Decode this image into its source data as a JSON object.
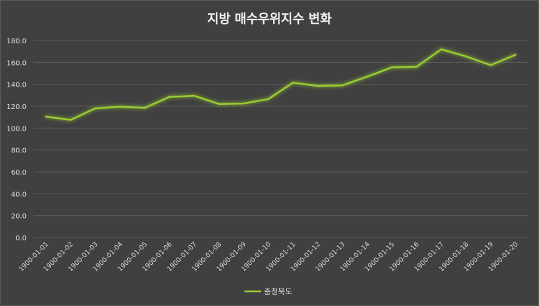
{
  "chart_data": {
    "type": "line",
    "title": "지방 매수우위지수 변화",
    "xlabel": "",
    "ylabel": "",
    "categories": [
      "1900-01-01",
      "1900-01-02",
      "1900-01-03",
      "1900-01-04",
      "1900-01-05",
      "1900-01-06",
      "1900-01-07",
      "1900-01-08",
      "1900-01-09",
      "1900-01-10",
      "1900-01-11",
      "1900-01-12",
      "1900-01-13",
      "1900-01-14",
      "1900-01-15",
      "1900-01-16",
      "1900-01-17",
      "1900-01-18",
      "1900-01-19",
      "1900-01-20"
    ],
    "series": [
      {
        "name": "충청북도",
        "color": "#9acd32",
        "values": [
          110.5,
          107.5,
          118.0,
          119.5,
          118.5,
          128.5,
          129.5,
          122.0,
          122.5,
          126.5,
          141.5,
          138.5,
          139.0,
          147.0,
          155.5,
          156.0,
          172.0,
          165.5,
          157.5,
          167.0
        ]
      }
    ],
    "ylim": [
      0,
      180
    ],
    "yticks": [
      "0.0",
      "20.0",
      "40.0",
      "60.0",
      "80.0",
      "100.0",
      "120.0",
      "140.0",
      "160.0",
      "180.0"
    ],
    "grid": true,
    "legend": "bottom"
  }
}
